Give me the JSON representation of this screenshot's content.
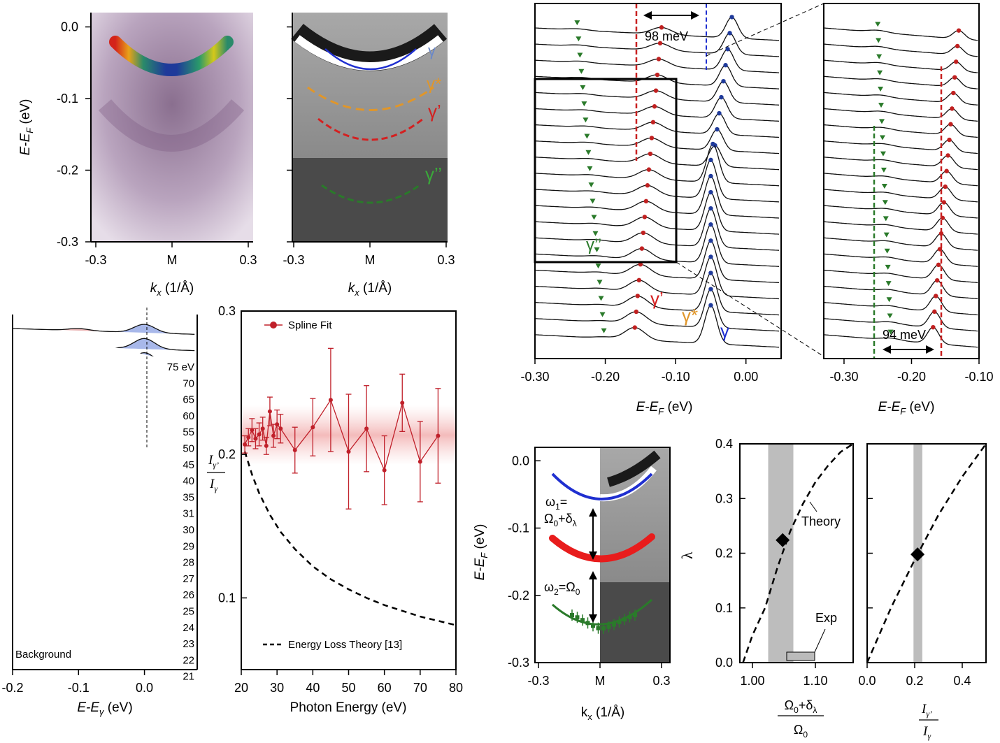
{
  "colors": {
    "blue_band": "#1f2fd0",
    "red_band": "#d42020",
    "orange_band": "#e0962a",
    "green_band": "#2a7a2a",
    "axis": "#000000",
    "fill_blue": "#a8b8ea",
    "fill_red": "#eab4b4",
    "error_red": "#c0202a"
  },
  "chart_data": [
    {
      "type": "heatmap",
      "panel": "a",
      "xlabel": "k",
      "xlabel_sub": "x",
      "xlabel_unit": " (1/Å)",
      "ylabel": "E-E",
      "ylabel_sub": "F",
      "ylabel_unit": " (eV)",
      "xlim": [
        -0.3,
        0.3
      ],
      "ylim": [
        -0.3,
        0.02
      ],
      "xticks": [
        "-0.3",
        "M",
        "0.3"
      ],
      "yticks": [
        "0.0",
        "-0.1",
        "-0.2",
        "-0.3"
      ]
    },
    {
      "type": "heatmap",
      "panel": "b",
      "xlabel": "k",
      "xlabel_sub": "x",
      "xlabel_unit": " (1/Å)",
      "xlim": [
        -0.3,
        0.3
      ],
      "ylim": [
        -0.3,
        0.02
      ],
      "xticks": [
        "-0.3",
        "M",
        "0.3"
      ],
      "series": [
        {
          "name": "γ",
          "color": "#1f2fd0",
          "min_energy": -0.056,
          "k_range": [
            -0.2,
            0.2
          ]
        },
        {
          "name": "γ*",
          "color": "#e0962a",
          "min_energy": -0.115,
          "k_range": [
            -0.25,
            0.25
          ]
        },
        {
          "name": "γ’",
          "color": "#d42020",
          "min_energy": -0.155,
          "k_range": [
            -0.2,
            0.2
          ]
        },
        {
          "name": "γ’’",
          "color": "#2a7a2a",
          "min_energy": -0.248,
          "k_range": [
            -0.2,
            0.2
          ]
        }
      ]
    },
    {
      "type": "line",
      "panel": "c",
      "xlabel": "E-E",
      "xlabel_sub": "γ",
      "xlabel_unit": " (eV)",
      "xlim": [
        -0.2,
        0.08
      ],
      "xticks": [
        "-0.2",
        "-0.1",
        "0.0"
      ],
      "photon_energies": [
        "75 eV",
        "70",
        "65",
        "60",
        "55",
        "50",
        "45",
        "40",
        "35",
        "31",
        "30",
        "29",
        "28",
        "27",
        "26",
        "25",
        "24",
        "23",
        "22",
        "21"
      ],
      "background_label": "Background"
    },
    {
      "type": "scatter",
      "panel": "d",
      "xlabel": "Photon Energy (eV)",
      "ylabel_num": "I",
      "ylabel_num_sub": "γ’",
      "ylabel_den": "I",
      "ylabel_den_sub": "γ",
      "xlim": [
        20,
        80
      ],
      "ylim": [
        0.05,
        0.3
      ],
      "xticks": [
        "20",
        "30",
        "40",
        "50",
        "60",
        "70",
        "80"
      ],
      "yticks": [
        "0.1",
        "0.2",
        "0.3"
      ],
      "series": [
        {
          "name": "Spline Fit",
          "color": "#c0202a",
          "x": [
            21,
            22,
            23,
            24,
            25,
            26,
            27,
            28,
            29,
            30,
            31,
            35,
            40,
            45,
            50,
            55,
            60,
            65,
            70,
            75
          ],
          "y": [
            0.207,
            0.212,
            0.217,
            0.211,
            0.214,
            0.218,
            0.206,
            0.23,
            0.213,
            0.221,
            0.218,
            0.203,
            0.219,
            0.238,
            0.202,
            0.218,
            0.189,
            0.236,
            0.195,
            0.213
          ],
          "err": [
            0.006,
            0.006,
            0.008,
            0.007,
            0.008,
            0.008,
            0.006,
            0.01,
            0.008,
            0.01,
            0.01,
            0.016,
            0.02,
            0.036,
            0.04,
            0.03,
            0.024,
            0.02,
            0.028,
            0.033
          ]
        },
        {
          "name": "Energy Loss Theory [13]",
          "style": "dashed",
          "x": [
            21,
            23,
            25,
            28,
            31,
            35,
            40,
            45,
            50,
            55,
            60,
            65,
            70,
            75,
            80
          ],
          "y": [
            0.202,
            0.186,
            0.173,
            0.158,
            0.146,
            0.134,
            0.122,
            0.113,
            0.106,
            0.1,
            0.095,
            0.091,
            0.087,
            0.084,
            0.081
          ]
        }
      ]
    },
    {
      "type": "line",
      "panel": "e",
      "xlabel": "E-E",
      "xlabel_sub": "F",
      "xlabel_unit": " (eV)",
      "xlim": [
        -0.3,
        0.05
      ],
      "xticks": [
        "-0.30",
        "-0.20",
        "-0.10",
        "0.00"
      ],
      "annotation": "98 meV",
      "band_labels": [
        {
          "name": "γ’",
          "color": "#d42020"
        },
        {
          "name": "γ*",
          "color": "#e0962a"
        },
        {
          "name": "γ",
          "color": "#1f2fd0"
        },
        {
          "name": "γ’’",
          "color": "#2a7a2a"
        }
      ]
    },
    {
      "type": "line",
      "panel": "f",
      "xlabel": "E-E",
      "xlabel_sub": "F",
      "xlabel_unit": " (eV)",
      "xlim": [
        -0.33,
        -0.1
      ],
      "xticks": [
        "-0.30",
        "-0.20",
        "-0.10"
      ],
      "annotation": "94 meV"
    },
    {
      "type": "scatter",
      "panel": "g",
      "xlabel": "k",
      "xlabel_sub": "x",
      "xlabel_unit": " (1/Å)",
      "ylabel": "E-E",
      "ylabel_sub": "F",
      "ylabel_unit": " (eV)",
      "xlim": [
        -0.3,
        0.3
      ],
      "ylim": [
        -0.3,
        0.02
      ],
      "xticks": [
        "-0.3",
        "M",
        "0.3"
      ],
      "yticks": [
        "0.0",
        "-0.1",
        "-0.2",
        "-0.3"
      ],
      "omega1_line1": "ω",
      "omega1_sub": "1",
      "omega1_eq": "=",
      "omega1_line2": "Ω",
      "omega1_line2_sub": "0",
      "omega1_line2_rest": "+δ",
      "omega1_line2_sub2": "λ",
      "omega2": "ω",
      "omega2_sub": "2",
      "omega2_eq": "=Ω",
      "omega2_sub2": "0"
    },
    {
      "type": "line",
      "panel": "h",
      "ylabel": "λ",
      "xlim": [
        0.98,
        1.16
      ],
      "ylim": [
        0,
        0.4
      ],
      "xticks": [
        "1.00",
        "1.10"
      ],
      "yticks": [
        "0.0",
        "0.1",
        "0.2",
        "0.3",
        "0.4"
      ],
      "xlabel_num": "Ω",
      "xlabel_num_sub": "0",
      "xlabel_num_rest": "+δ",
      "xlabel_num_sub2": "λ",
      "xlabel_den": "Ω",
      "xlabel_den_sub": "0",
      "theory_label": "Theory",
      "exp_label": "Exp",
      "point": {
        "x": 1.048,
        "y": 0.224
      },
      "exp_band": [
        1.025,
        1.065
      ],
      "theory": {
        "x": [
          0.985,
          1.0,
          1.02,
          1.04,
          1.06,
          1.08,
          1.1,
          1.12,
          1.14,
          1.16
        ],
        "y": [
          0.0,
          0.05,
          0.1,
          0.175,
          0.24,
          0.29,
          0.33,
          0.36,
          0.385,
          0.4
        ]
      }
    },
    {
      "type": "line",
      "panel": "i",
      "xlim": [
        0,
        0.5
      ],
      "ylim": [
        0,
        0.4
      ],
      "xticks": [
        "0.0",
        "0.2",
        "0.4"
      ],
      "xlabel_num": "I",
      "xlabel_num_sub": "γ’",
      "xlabel_den": "I",
      "xlabel_den_sub": "γ",
      "point": {
        "x": 0.212,
        "y": 0.198
      },
      "exp_band": [
        0.195,
        0.232
      ],
      "theory": {
        "x": [
          0,
          0.1,
          0.2,
          0.3,
          0.4,
          0.5
        ],
        "y": [
          0.0,
          0.1,
          0.188,
          0.27,
          0.34,
          0.4
        ]
      }
    }
  ]
}
